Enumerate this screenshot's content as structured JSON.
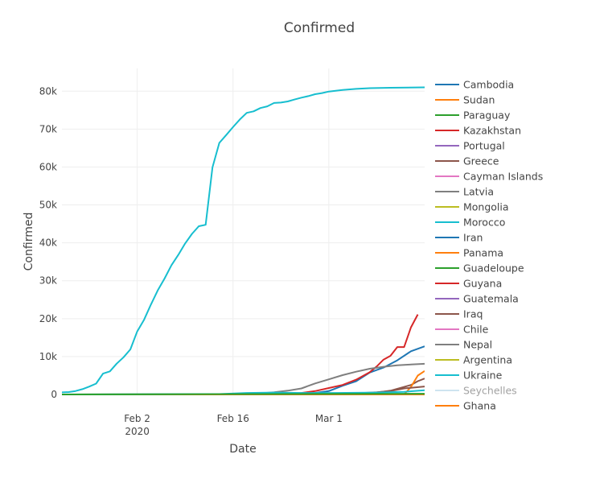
{
  "chart_data": {
    "type": "line",
    "title": "Confirmed",
    "xlabel": "Date",
    "ylabel": "Confirmed",
    "x_range": [
      "2020-01-22",
      "2020-03-15"
    ],
    "ylim": [
      0,
      86000
    ],
    "x_ticks": [
      {
        "date": "2020-02-02",
        "label": "Feb 2",
        "sublabel": "2020"
      },
      {
        "date": "2020-02-16",
        "label": "Feb 16",
        "sublabel": ""
      },
      {
        "date": "2020-03-01",
        "label": "Mar 1",
        "sublabel": ""
      }
    ],
    "y_ticks": [
      {
        "value": 0,
        "label": "0"
      },
      {
        "value": 10000,
        "label": "10k"
      },
      {
        "value": 20000,
        "label": "20k"
      },
      {
        "value": 30000,
        "label": "30k"
      },
      {
        "value": 40000,
        "label": "40k"
      },
      {
        "value": 50000,
        "label": "50k"
      },
      {
        "value": 60000,
        "label": "60k"
      },
      {
        "value": 70000,
        "label": "70k"
      },
      {
        "value": 80000,
        "label": "80k"
      }
    ],
    "grid": true,
    "legend_position": "right",
    "series": [
      {
        "name": "Cambodia",
        "color": "#1f77b4",
        "opacity": 1,
        "points": [
          [
            "2020-01-22",
            0
          ],
          [
            "2020-03-15",
            0
          ]
        ]
      },
      {
        "name": "Sudan",
        "color": "#ff7f0e",
        "opacity": 1,
        "points": [
          [
            "2020-01-22",
            0
          ],
          [
            "2020-03-15",
            0
          ]
        ]
      },
      {
        "name": "Paraguay",
        "color": "#2ca02c",
        "opacity": 1,
        "points": [
          [
            "2020-01-22",
            0
          ],
          [
            "2020-03-15",
            0
          ]
        ]
      },
      {
        "name": "Kazakhstan",
        "color": "#d62728",
        "opacity": 1,
        "points": [
          [
            "2020-01-22",
            0
          ],
          [
            "2020-03-15",
            0
          ]
        ]
      },
      {
        "name": "Portugal",
        "color": "#9467bd",
        "opacity": 1,
        "points": [
          [
            "2020-01-22",
            0
          ],
          [
            "2020-03-15",
            0
          ]
        ]
      },
      {
        "name": "Greece",
        "color": "#8c564b",
        "opacity": 1,
        "points": [
          [
            "2020-01-22",
            0
          ],
          [
            "2020-03-05",
            0
          ],
          [
            "2020-03-08",
            500
          ],
          [
            "2020-03-10",
            1000
          ],
          [
            "2020-03-12",
            2000
          ],
          [
            "2020-03-13",
            2500
          ],
          [
            "2020-03-14",
            3500
          ],
          [
            "2020-03-15",
            4200
          ]
        ]
      },
      {
        "name": "Cayman Islands",
        "color": "#e377c2",
        "opacity": 1,
        "points": [
          [
            "2020-01-22",
            0
          ],
          [
            "2020-03-15",
            0
          ]
        ]
      },
      {
        "name": "Latvia",
        "color": "#7f7f7f",
        "opacity": 1,
        "points": [
          [
            "2020-01-22",
            0
          ],
          [
            "2020-03-15",
            0
          ]
        ]
      },
      {
        "name": "Mongolia",
        "color": "#bcbd22",
        "opacity": 1,
        "points": [
          [
            "2020-01-22",
            0
          ],
          [
            "2020-03-15",
            0
          ]
        ]
      },
      {
        "name": "Morocco",
        "color": "#17becf",
        "opacity": 1,
        "points": [
          [
            "2020-01-22",
            0
          ],
          [
            "2020-03-15",
            0
          ]
        ]
      },
      {
        "name": "Iran",
        "color": "#1f77b4",
        "opacity": 1,
        "points": [
          [
            "2020-01-22",
            0
          ],
          [
            "2020-02-19",
            0
          ],
          [
            "2020-02-23",
            40
          ],
          [
            "2020-02-26",
            200
          ],
          [
            "2020-02-28",
            400
          ],
          [
            "2020-03-01",
            900
          ],
          [
            "2020-03-03",
            2300
          ],
          [
            "2020-03-05",
            3500
          ],
          [
            "2020-03-07",
            5800
          ],
          [
            "2020-03-09",
            7100
          ],
          [
            "2020-03-11",
            9000
          ],
          [
            "2020-03-13",
            11400
          ],
          [
            "2020-03-15",
            12700
          ]
        ]
      },
      {
        "name": "Panama",
        "color": "#ff7f0e",
        "opacity": 1,
        "points": [
          [
            "2020-01-22",
            0
          ],
          [
            "2020-03-12",
            0
          ],
          [
            "2020-03-13",
            2000
          ],
          [
            "2020-03-14",
            5000
          ],
          [
            "2020-03-15",
            6200
          ]
        ]
      },
      {
        "name": "Guadeloupe",
        "color": "#2ca02c",
        "opacity": 1,
        "points": [
          [
            "2020-01-22",
            0
          ],
          [
            "2020-03-15",
            0
          ]
        ]
      },
      {
        "name": "Guyana",
        "color": "#d62728",
        "opacity": 1,
        "points": [
          [
            "2020-01-22",
            0
          ],
          [
            "2020-02-22",
            0
          ],
          [
            "2020-02-26",
            400
          ],
          [
            "2020-02-28",
            900
          ],
          [
            "2020-03-01",
            1700
          ],
          [
            "2020-03-03",
            2500
          ],
          [
            "2020-03-05",
            3900
          ],
          [
            "2020-03-07",
            5900
          ],
          [
            "2020-03-08",
            7400
          ],
          [
            "2020-03-09",
            9200
          ],
          [
            "2020-03-10",
            10200
          ],
          [
            "2020-03-11",
            12500
          ],
          [
            "2020-03-12",
            12500
          ],
          [
            "2020-03-13",
            17700
          ],
          [
            "2020-03-14",
            21100
          ]
        ]
      },
      {
        "name": "Guatemala",
        "color": "#9467bd",
        "opacity": 1,
        "points": [
          [
            "2020-01-22",
            0
          ],
          [
            "2020-03-15",
            0
          ]
        ]
      },
      {
        "name": "Iraq",
        "color": "#8c564b",
        "opacity": 1,
        "points": [
          [
            "2020-01-22",
            0
          ],
          [
            "2020-03-01",
            0
          ],
          [
            "2020-03-05",
            300
          ],
          [
            "2020-03-08",
            600
          ],
          [
            "2020-03-10",
            900
          ],
          [
            "2020-03-12",
            1600
          ],
          [
            "2020-03-15",
            2100
          ]
        ]
      },
      {
        "name": "Chile",
        "color": "#e377c2",
        "opacity": 1,
        "points": [
          [
            "2020-01-22",
            0
          ],
          [
            "2020-03-15",
            0
          ]
        ]
      },
      {
        "name": "Nepal",
        "color": "#7f7f7f",
        "opacity": 1,
        "points": [
          [
            "2020-01-22",
            0
          ],
          [
            "2020-02-18",
            100
          ],
          [
            "2020-02-20",
            300
          ],
          [
            "2020-02-22",
            600
          ],
          [
            "2020-02-24",
            1000
          ],
          [
            "2020-02-26",
            1600
          ],
          [
            "2020-02-28",
            2900
          ],
          [
            "2020-03-01",
            4000
          ],
          [
            "2020-03-03",
            5100
          ],
          [
            "2020-03-05",
            6000
          ],
          [
            "2020-03-07",
            6800
          ],
          [
            "2020-03-09",
            7300
          ],
          [
            "2020-03-11",
            7700
          ],
          [
            "2020-03-13",
            7900
          ],
          [
            "2020-03-15",
            8100
          ]
        ]
      },
      {
        "name": "Argentina",
        "color": "#bcbd22",
        "opacity": 1,
        "points": [
          [
            "2020-01-22",
            0
          ],
          [
            "2020-03-15",
            0
          ]
        ]
      },
      {
        "name": "Ukraine",
        "color": "#17becf",
        "opacity": 1,
        "points": [
          [
            "2020-01-22",
            548
          ],
          [
            "2020-01-23",
            643
          ],
          [
            "2020-01-24",
            920
          ],
          [
            "2020-01-25",
            1406
          ],
          [
            "2020-01-26",
            2075
          ],
          [
            "2020-01-27",
            2877
          ],
          [
            "2020-01-28",
            5509
          ],
          [
            "2020-01-29",
            6087
          ],
          [
            "2020-01-30",
            8141
          ],
          [
            "2020-01-31",
            9802
          ],
          [
            "2020-02-01",
            11891
          ],
          [
            "2020-02-02",
            16630
          ],
          [
            "2020-02-03",
            19716
          ],
          [
            "2020-02-04",
            23707
          ],
          [
            "2020-02-05",
            27440
          ],
          [
            "2020-02-06",
            30587
          ],
          [
            "2020-02-07",
            34110
          ],
          [
            "2020-02-08",
            36814
          ],
          [
            "2020-02-09",
            39829
          ],
          [
            "2020-02-10",
            42354
          ],
          [
            "2020-02-11",
            44386
          ],
          [
            "2020-02-12",
            44759
          ],
          [
            "2020-02-13",
            59895
          ],
          [
            "2020-02-14",
            66358
          ],
          [
            "2020-02-15",
            68413
          ],
          [
            "2020-02-16",
            70513
          ],
          [
            "2020-02-17",
            72528
          ],
          [
            "2020-02-18",
            74280
          ],
          [
            "2020-02-19",
            74675
          ],
          [
            "2020-02-20",
            75550
          ],
          [
            "2020-02-21",
            76000
          ],
          [
            "2020-02-22",
            76888
          ],
          [
            "2020-02-23",
            77000
          ],
          [
            "2020-02-24",
            77300
          ],
          [
            "2020-02-25",
            77800
          ],
          [
            "2020-02-26",
            78300
          ],
          [
            "2020-02-27",
            78700
          ],
          [
            "2020-02-28",
            79200
          ],
          [
            "2020-02-29",
            79500
          ],
          [
            "2020-03-01",
            79900
          ],
          [
            "2020-03-03",
            80300
          ],
          [
            "2020-03-05",
            80600
          ],
          [
            "2020-03-07",
            80800
          ],
          [
            "2020-03-10",
            80900
          ],
          [
            "2020-03-15",
            81000
          ]
        ]
      },
      {
        "name": "Seychelles",
        "color": "#9ecae1",
        "opacity": 0.5,
        "points": [
          [
            "2020-01-22",
            0
          ],
          [
            "2020-03-15",
            0
          ]
        ]
      },
      {
        "name": "Ghana",
        "color": "#ff7f0e",
        "opacity": 1,
        "points": [
          [
            "2020-01-22",
            0
          ],
          [
            "2020-03-15",
            0
          ]
        ]
      },
      {
        "name": "",
        "color": "#17becf",
        "opacity": 1,
        "points": [
          [
            "2020-01-22",
            0
          ],
          [
            "2020-02-14",
            100
          ],
          [
            "2020-02-18",
            400
          ],
          [
            "2020-02-22",
            500
          ],
          [
            "2020-02-26",
            400
          ],
          [
            "2020-03-02",
            400
          ],
          [
            "2020-03-08",
            500
          ],
          [
            "2020-03-12",
            700
          ],
          [
            "2020-03-15",
            1100
          ]
        ]
      },
      {
        "name": "",
        "color": "#2ca02c",
        "opacity": 1,
        "points": [
          [
            "2020-01-22",
            0
          ],
          [
            "2020-03-15",
            200
          ]
        ]
      }
    ]
  }
}
